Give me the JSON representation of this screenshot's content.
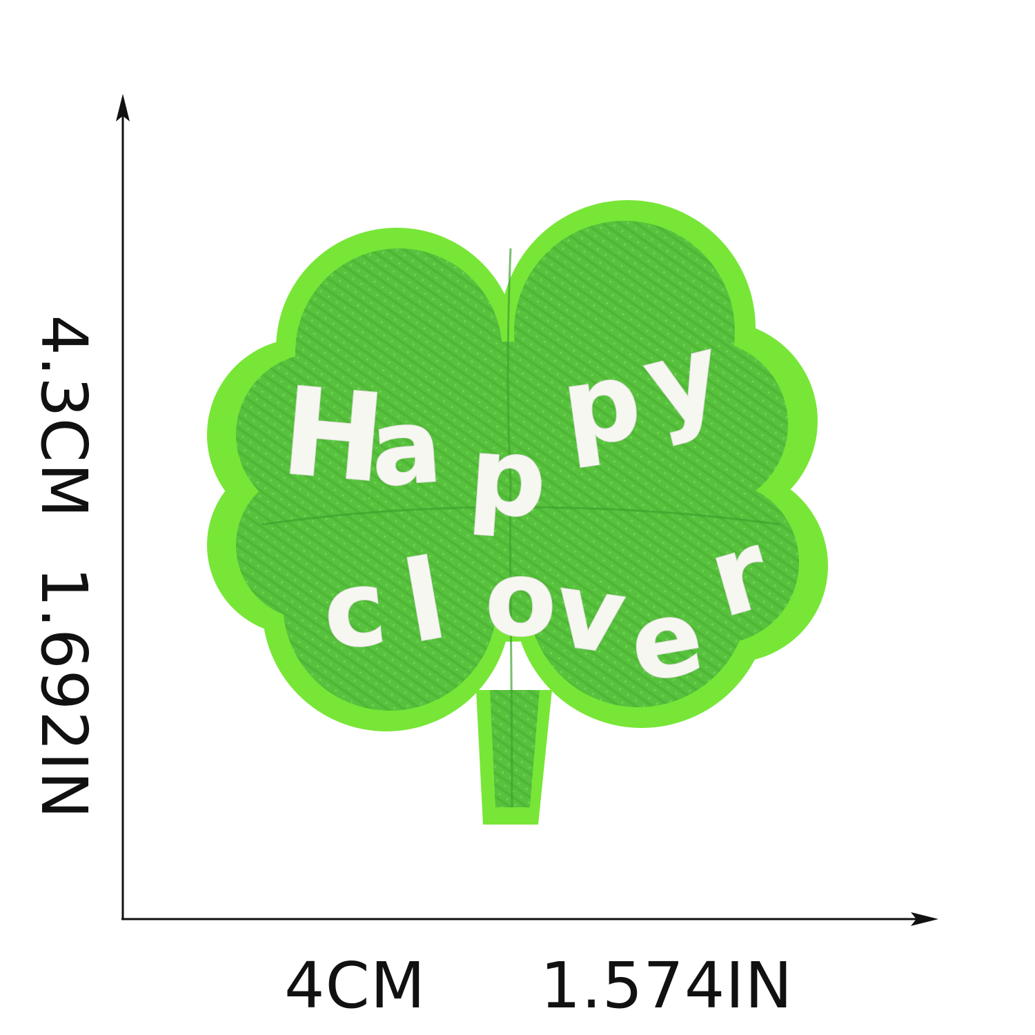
{
  "dimensions": {
    "height_cm": "4.3CM",
    "height_in": "1.692IN",
    "width_cm": "4CM",
    "width_in": "1.574IN"
  },
  "patch": {
    "letters": [
      "H",
      "a",
      "p",
      "p",
      "y",
      "c",
      "l",
      "o",
      "v",
      "e",
      "r"
    ],
    "felt_color": "#78e637",
    "embroidery_color": "#56c13e",
    "thread_color": "#f7f7f2"
  },
  "icons": {
    "vertical_arrow": "arrow-up-icon",
    "horizontal_arrow": "arrow-right-icon"
  }
}
